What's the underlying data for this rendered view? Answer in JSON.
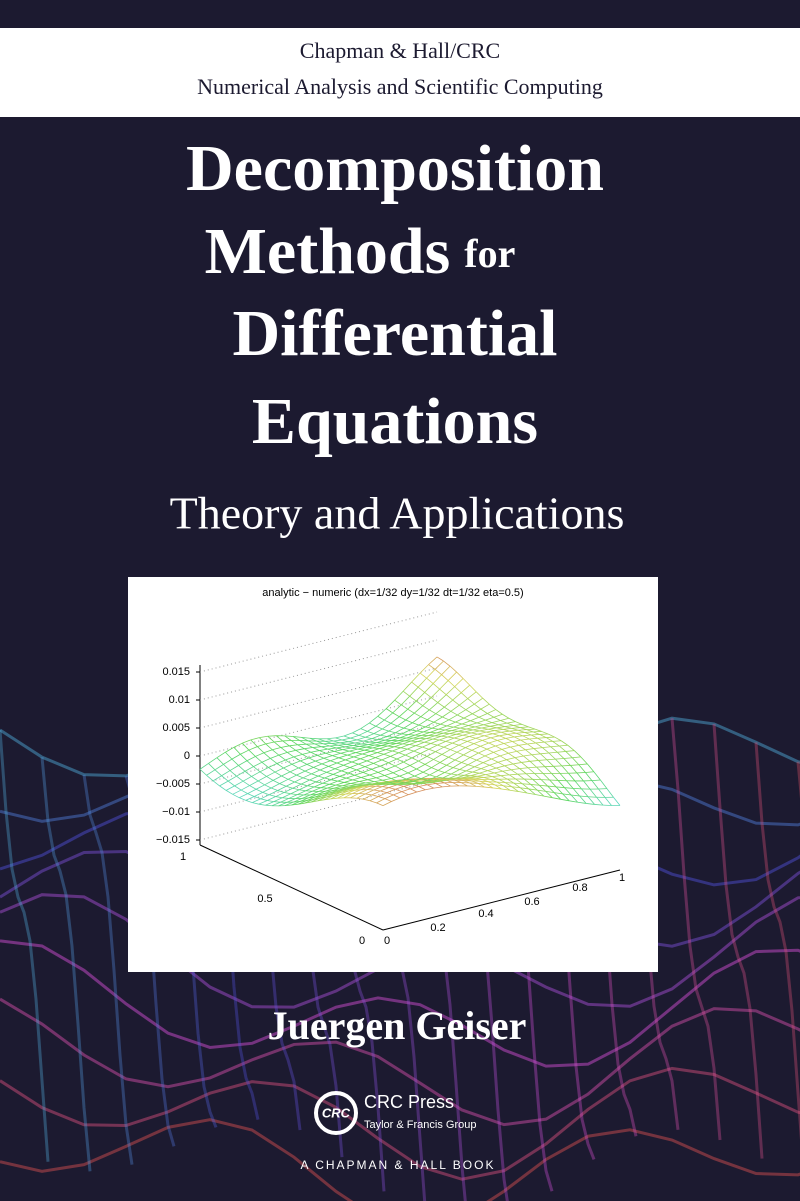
{
  "series_band": {
    "publisher": "Chapman & Hall/CRC",
    "series": "Numerical Analysis and Scientific Computing"
  },
  "title": {
    "line1": "Decomposition",
    "line2": "Methods",
    "line2_small": "for",
    "line3": "Differential",
    "line4": "Equations"
  },
  "subtitle": "Theory and Applications",
  "figure": {
    "title": "analytic − numeric (dx=1/32 dy=1/32 dt=1/32 eta=0.5)",
    "z_ticks": [
      "0.015",
      "0.01",
      "0.005",
      "0",
      "−0.005",
      "−0.01",
      "−0.015"
    ],
    "y_ticks": [
      "1",
      "0.5",
      "0"
    ],
    "x_ticks": [
      "0",
      "0.2",
      "0.4",
      "0.6",
      "0.8",
      "1"
    ]
  },
  "author": "Juergen Geiser",
  "logo": {
    "mark": "CRC",
    "name": "CRC Press",
    "group": "Taylor & Francis Group",
    "tagline": "A CHAPMAN & HALL BOOK"
  }
}
